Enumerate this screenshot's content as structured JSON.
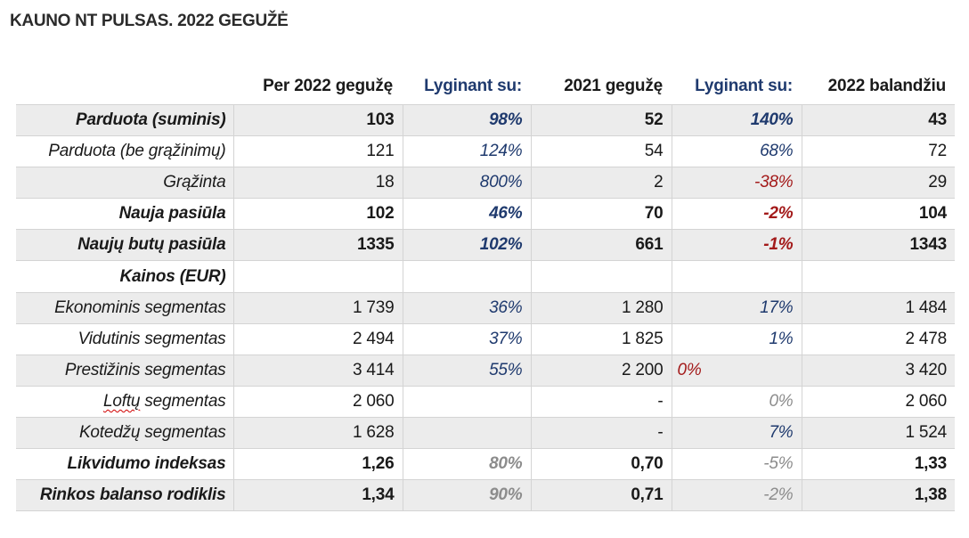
{
  "title": "KAUNO NT PULSAS. 2022 GEGUŽĖ",
  "headers": {
    "col1": "Per 2022 gegužę",
    "col2": "Lyginant su:",
    "col3": "2021 gegužę",
    "col4": "Lyginant su:",
    "col5": "2022 balandžiu"
  },
  "rows": [
    {
      "label": "Parduota (suminis)",
      "v1": "103",
      "p1": "98%",
      "v2": "52",
      "p2": "140%",
      "v3": "43"
    },
    {
      "label": "Parduota (be grąžinimų)",
      "v1": "121",
      "p1": "124%",
      "v2": "54",
      "p2": "68%",
      "v3": "72"
    },
    {
      "label": "Grąžinta",
      "v1": "18",
      "p1": "800%",
      "v2": "2",
      "p2": "-38%",
      "v3": "29"
    },
    {
      "label": "Nauja pasiūla",
      "v1": "102",
      "p1": "46%",
      "v2": "70",
      "p2": "-2%",
      "v3": "104"
    },
    {
      "label": "Naujų butų pasiūla",
      "v1": "1335",
      "p1": "102%",
      "v2": "661",
      "p2": "-1%",
      "v3": "1343"
    },
    {
      "label": "Kainos (EUR)",
      "v1": "",
      "p1": "",
      "v2": "",
      "p2": "",
      "v3": ""
    },
    {
      "label": "Ekonominis segmentas",
      "v1": "1 739",
      "p1": "36%",
      "v2": "1 280",
      "p2": "17%",
      "v3": "1 484"
    },
    {
      "label": "Vidutinis segmentas",
      "v1": "2 494",
      "p1": "37%",
      "v2": "1 825",
      "p2": "1%",
      "v3": "2 478"
    },
    {
      "label": "Prestižinis segmentas",
      "v1": "3 414",
      "p1": "55%",
      "v2": "2 200",
      "p2": "0%",
      "v3": "3 420"
    },
    {
      "label_prefix": "Loftų",
      "label_suffix": " segmentas",
      "v1": "2 060",
      "p1": "",
      "v2": "-",
      "p2": "0%",
      "v3": "2 060"
    },
    {
      "label": "Kotedžų segmentas",
      "v1": "1 628",
      "p1": "",
      "v2": "-",
      "p2": "7%",
      "v3": "1 524"
    },
    {
      "label": "Likvidumo indeksas",
      "v1": "1,26",
      "p1": "80%",
      "v2": "0,70",
      "p2": "-5%",
      "v3": "1,33"
    },
    {
      "label": "Rinkos balanso rodiklis",
      "v1": "1,34",
      "p1": "90%",
      "v2": "0,71",
      "p2": "-2%",
      "v3": "1,38"
    }
  ],
  "colors": {
    "blue": "#1f3a6e",
    "red": "#a31a1a",
    "gray": "#8c8c8c",
    "shade": "#ececec"
  }
}
